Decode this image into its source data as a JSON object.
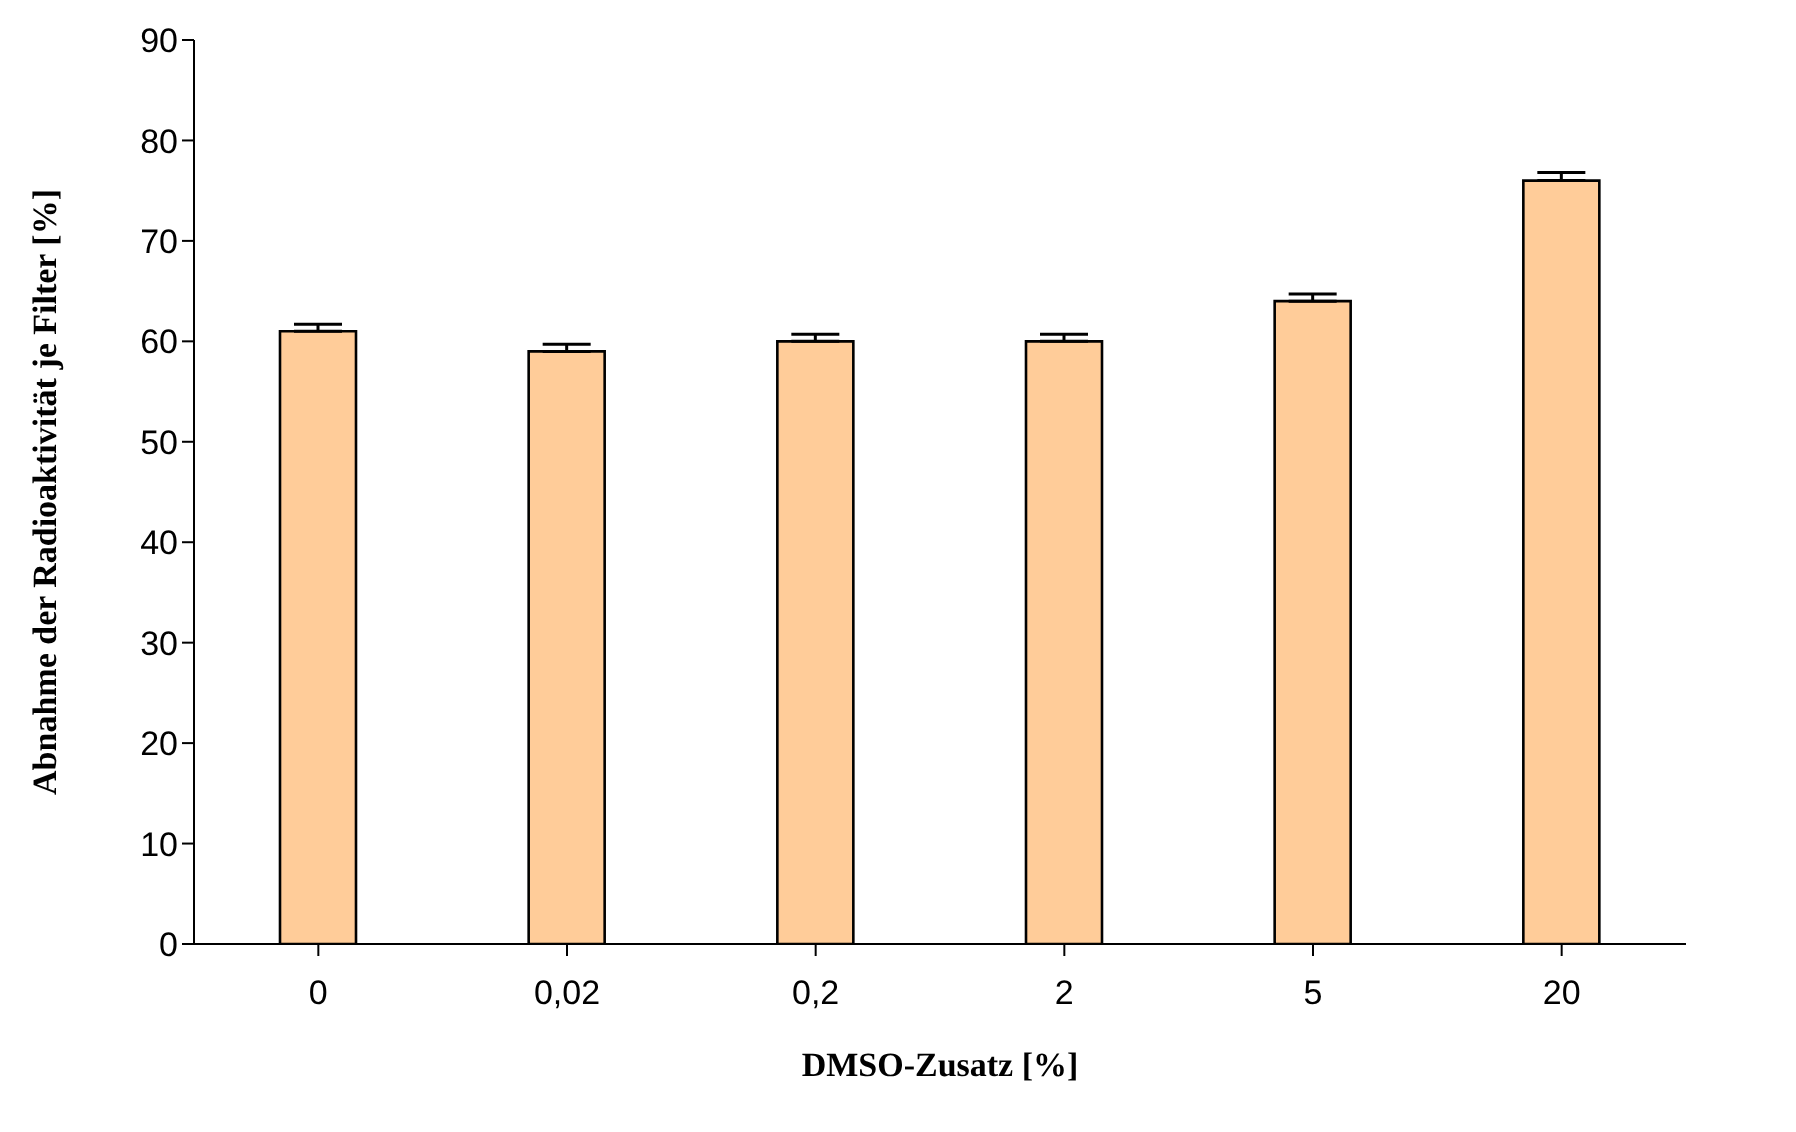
{
  "chart_data": {
    "type": "bar",
    "xlabel": "DMSO-Zusatz [%]",
    "ylabel": "Abnahme der Radioaktivität je Filter [%]",
    "categories": [
      "0",
      "0,02",
      "0,2",
      "2",
      "5",
      "20"
    ],
    "values": [
      61,
      59,
      60,
      60,
      64,
      76
    ],
    "errors": [
      [
        61,
        61.7
      ],
      [
        59,
        59.7
      ],
      [
        60,
        60.7
      ],
      [
        60,
        60.7
      ],
      [
        64,
        64.7
      ],
      [
        76,
        76.8
      ]
    ],
    "color": "#ffcc99",
    "ylim": [
      0,
      90
    ],
    "yticks": [
      0,
      10,
      20,
      30,
      40,
      50,
      60,
      70,
      80,
      90
    ],
    "grid": false,
    "legend": false
  }
}
